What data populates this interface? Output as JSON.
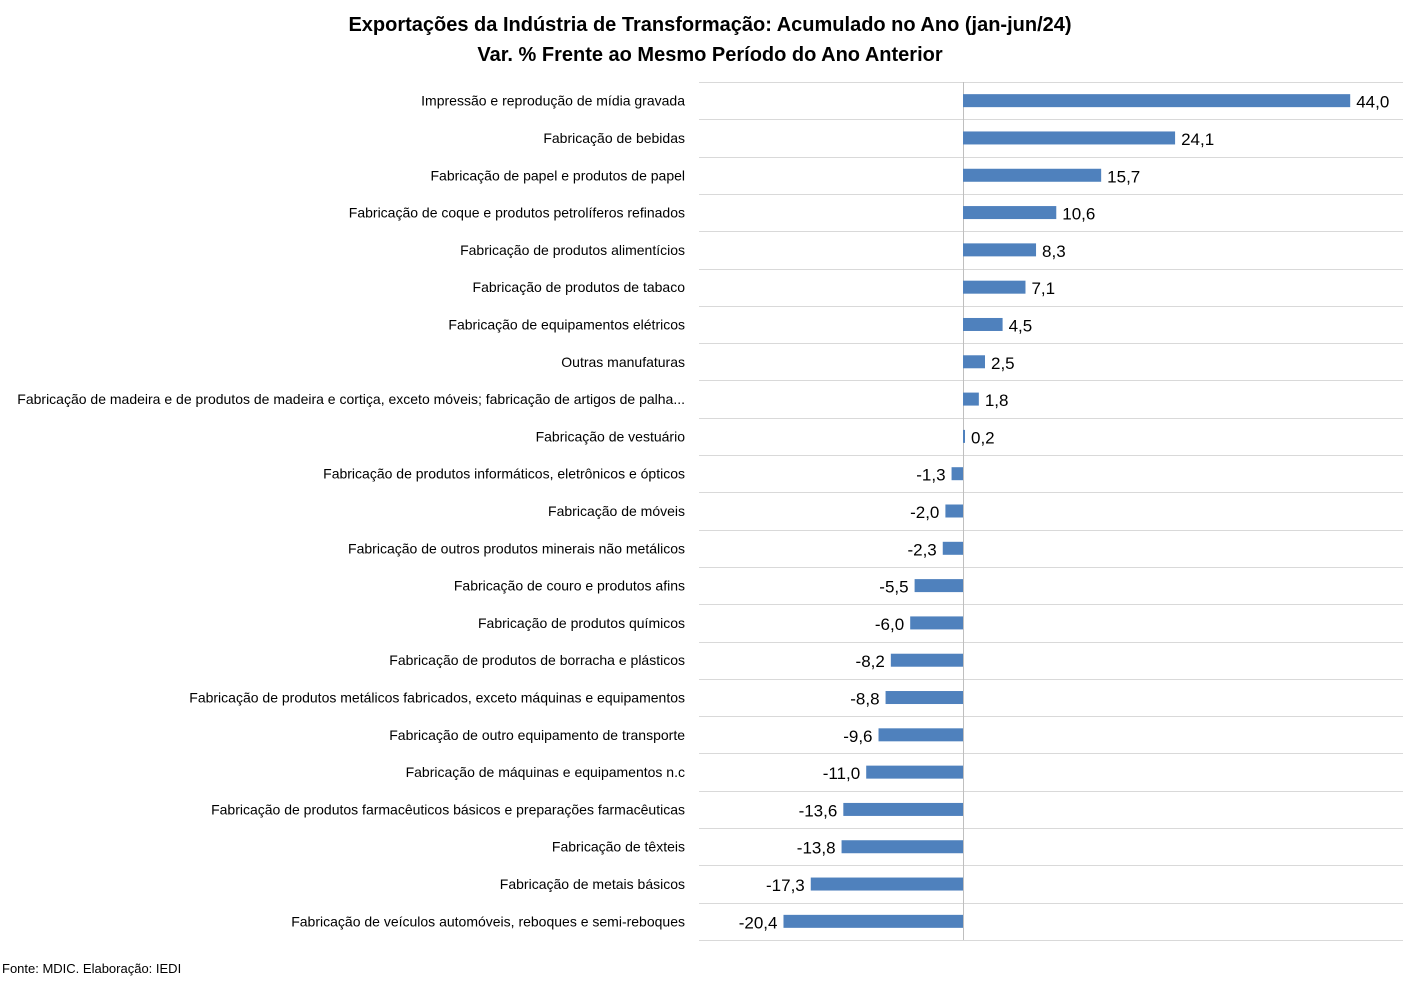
{
  "chart_data": {
    "type": "bar",
    "orientation": "horizontal",
    "title": "Exportações da Indústria de Transformação: Acumulado no Ano (jan-jun/24)",
    "subtitle": "Var. % Frente ao Mesmo Período do Ano Anterior",
    "categories": [
      "Impressão e reprodução de mídia gravada",
      "Fabricação de bebidas",
      "Fabricação de papel e produtos de papel",
      "Fabricação de coque e produtos petrolíferos refinados",
      "Fabricação de produtos alimentícios",
      "Fabricação de produtos de tabaco",
      "Fabricação de equipamentos elétricos",
      "Outras manufaturas",
      "Fabricação de madeira e de produtos de madeira e cortiça, exceto móveis; fabricação de artigos de palha...",
      "Fabricação de vestuário",
      "Fabricação de produtos informáticos, eletrônicos e ópticos",
      "Fabricação de móveis",
      "Fabricação de outros produtos minerais não metálicos",
      "Fabricação de couro e produtos afins",
      "Fabricação de produtos químicos",
      "Fabricação de produtos de borracha e plásticos",
      "Fabricação de produtos metálicos fabricados, exceto máquinas e equipamentos",
      "Fabricação de outro equipamento de transporte",
      "Fabricação de máquinas e equipamentos n.c",
      "Fabricação de produtos farmacêuticos básicos e preparações farmacêuticas",
      "Fabricação de têxteis",
      "Fabricação de metais básicos",
      "Fabricação de veículos automóveis, reboques e semi-reboques"
    ],
    "values": [
      44.0,
      24.1,
      15.7,
      10.6,
      8.3,
      7.1,
      4.5,
      2.5,
      1.8,
      0.2,
      -1.3,
      -2.0,
      -2.3,
      -5.5,
      -6.0,
      -8.2,
      -8.8,
      -9.6,
      -11.0,
      -13.6,
      -13.8,
      -17.3,
      -20.4
    ],
    "value_labels": [
      "44,0",
      "24,1",
      "15,7",
      "10,6",
      "8,3",
      "7,1",
      "4,5",
      "2,5",
      "1,8",
      "0,2",
      "-1,3",
      "-2,0",
      "-2,3",
      "-5,5",
      "-6,0",
      "-8,2",
      "-8,8",
      "-9,6",
      "-11,0",
      "-13,6",
      "-13,8",
      "-17,3",
      "-20,4"
    ],
    "xlim": [
      -30,
      50
    ],
    "grid": true,
    "legend": "none",
    "bar_color": "#4F81BD",
    "grid_color": "#D9D9D9"
  },
  "source": "Fonte: MDIC. Elaboração: IEDI"
}
